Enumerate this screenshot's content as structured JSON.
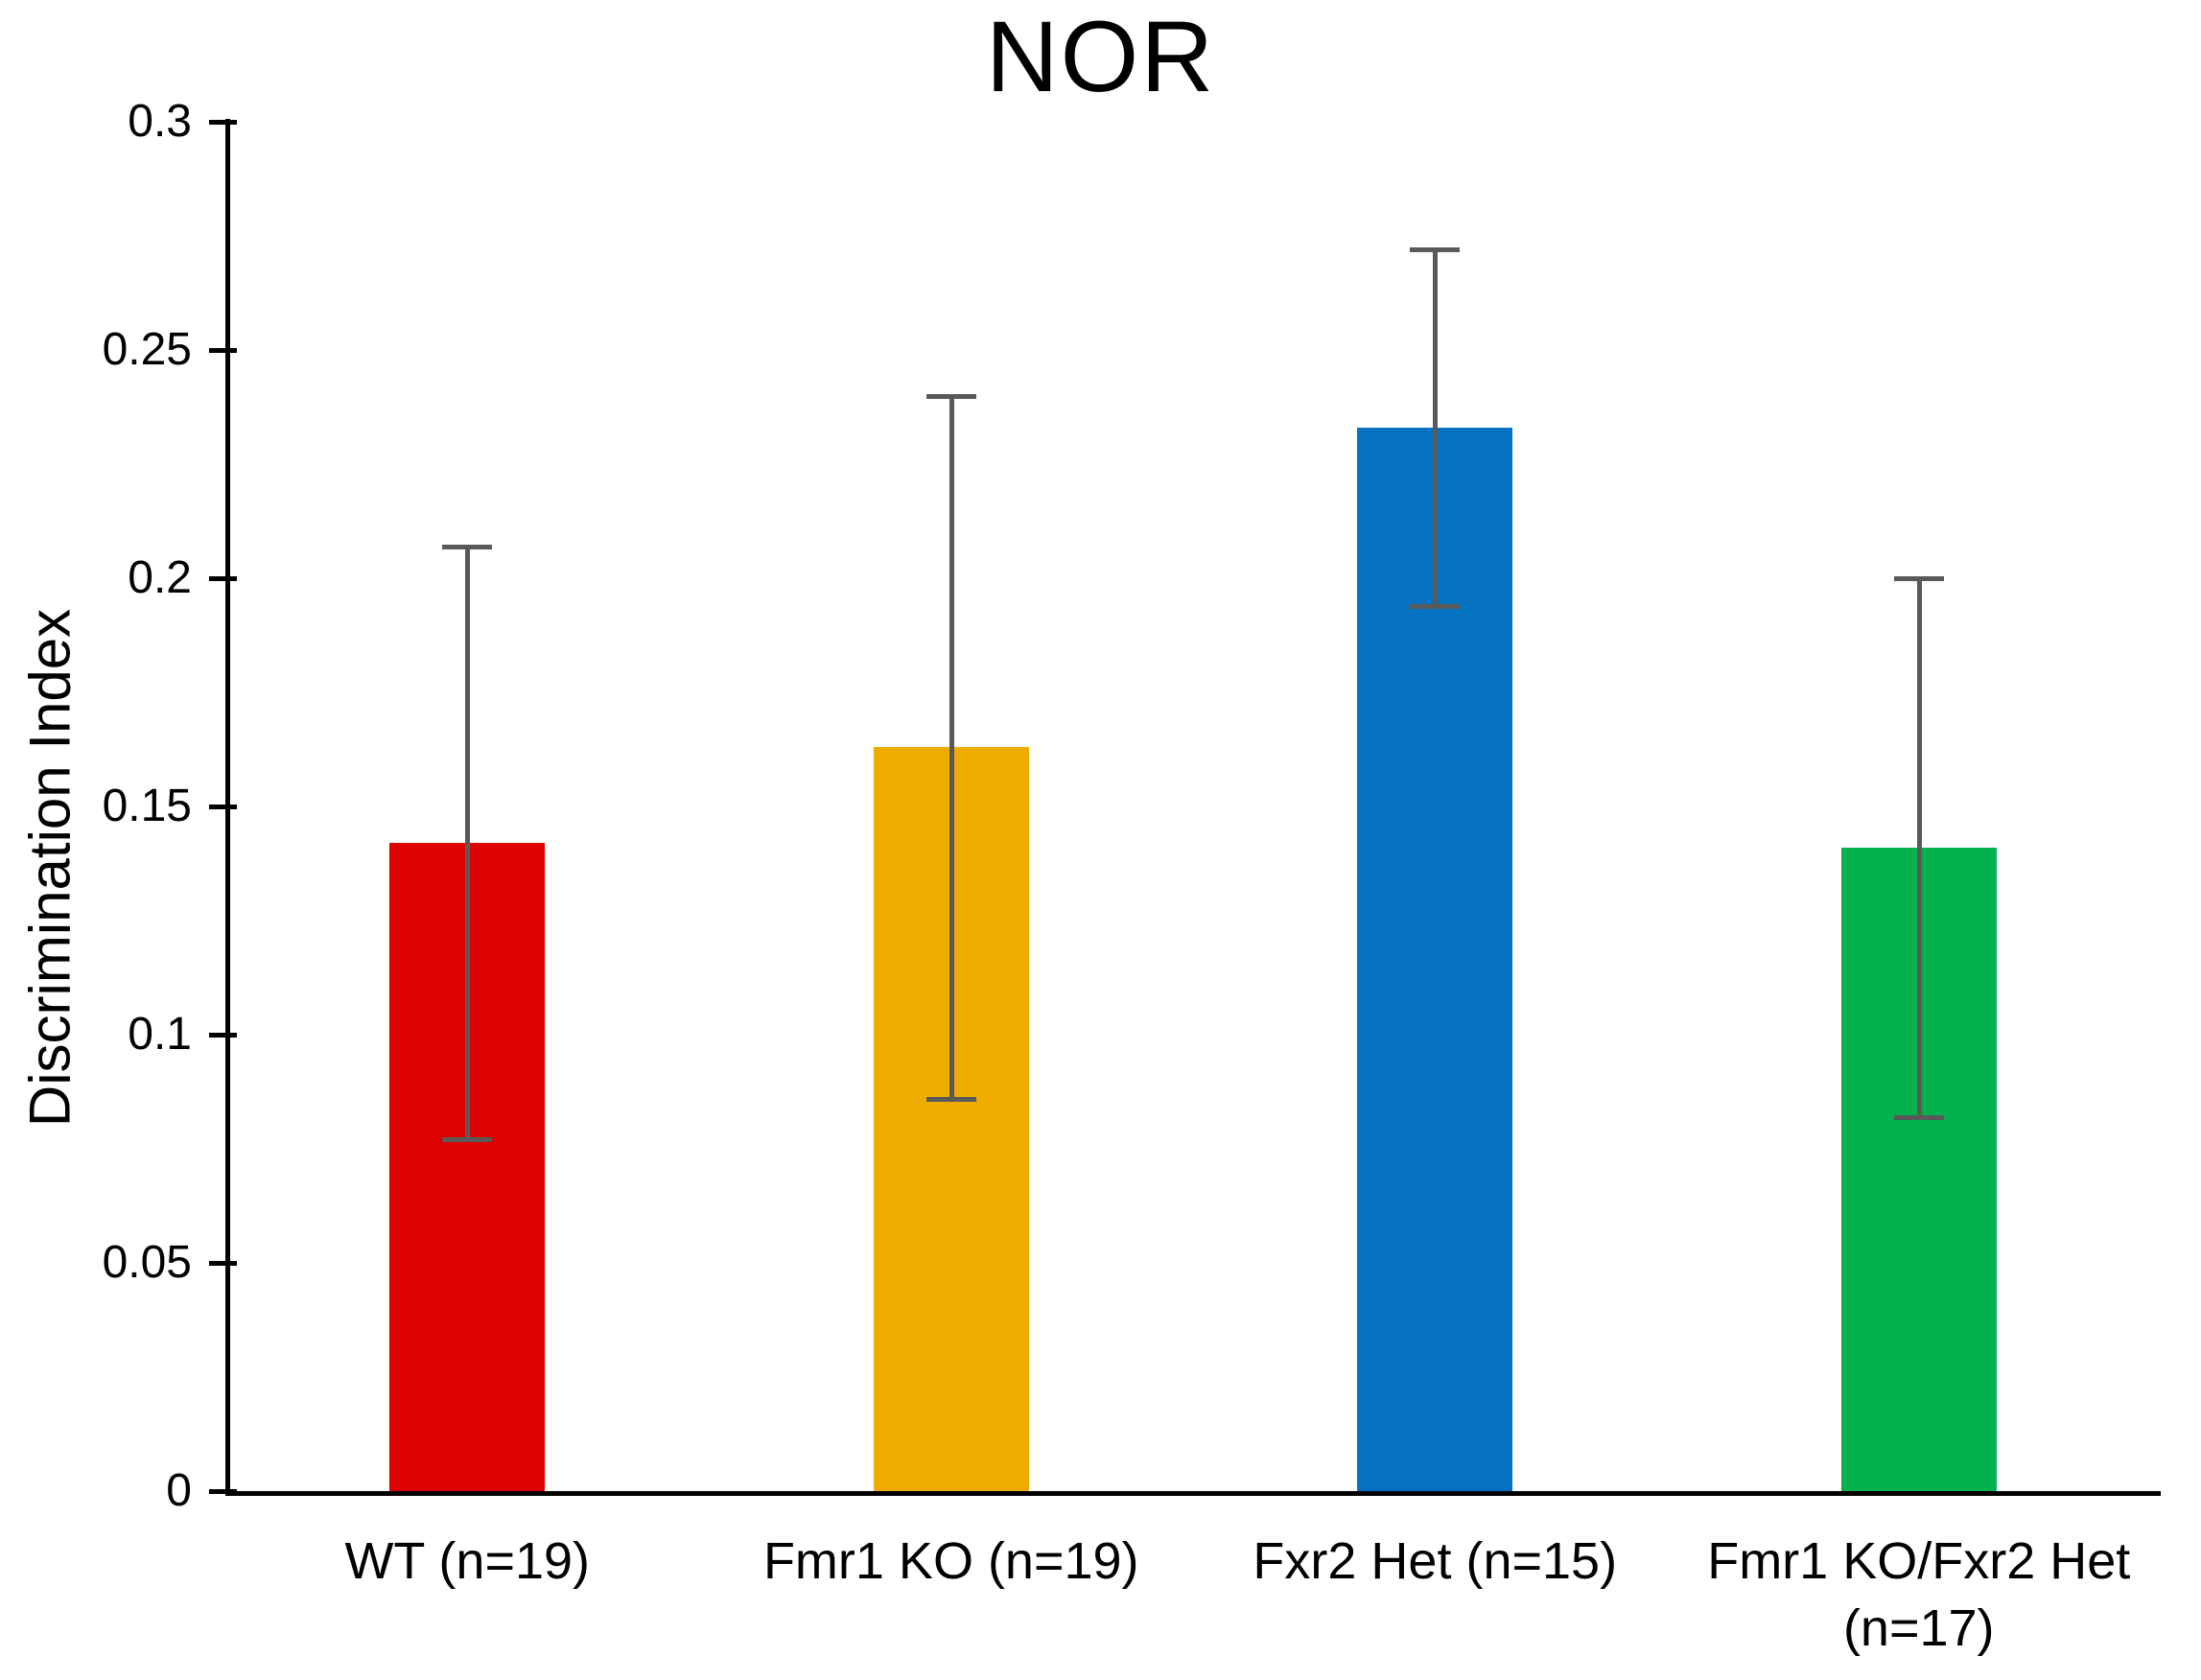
{
  "title": "NOR",
  "ylabel": "Discrimination Index",
  "chart_data": {
    "type": "bar",
    "title": "NOR",
    "xlabel": "",
    "ylabel": "Discrimination Index",
    "ylim": [
      0,
      0.3
    ],
    "ytick_step": 0.05,
    "ytick_labels": [
      "0.3",
      "0.25",
      "0.2",
      "0.15",
      "0.1",
      "0.05",
      "0"
    ],
    "ytick_values": [
      0.3,
      0.25,
      0.2,
      0.15,
      0.1,
      0.05,
      0
    ],
    "grid": false,
    "legend": null,
    "categories": [
      "WT (n=19)",
      "Fmr1 KO (n=19)",
      "Fxr2 Het (n=15)",
      "Fmr1 KO/Fxr2 Het (n=17)"
    ],
    "category_label_lines": [
      [
        "WT (n=19)"
      ],
      [
        "Fmr1 KO (n=19)"
      ],
      [
        "Fxr2 Het (n=15)"
      ],
      [
        "Fmr1 KO/Fxr2 Het",
        "(n=17)"
      ]
    ],
    "sample_sizes": [
      19,
      19,
      15,
      17
    ],
    "values": [
      0.142,
      0.163,
      0.233,
      0.141
    ],
    "error_low": [
      0.077,
      0.086,
      0.194,
      0.082
    ],
    "error_high": [
      0.207,
      0.24,
      0.272,
      0.2
    ],
    "bar_colors": [
      "#dd0101",
      "#efac00",
      "#0572c1",
      "#05b04f"
    ],
    "error_color": "#595959",
    "axis_color": "#000000"
  }
}
